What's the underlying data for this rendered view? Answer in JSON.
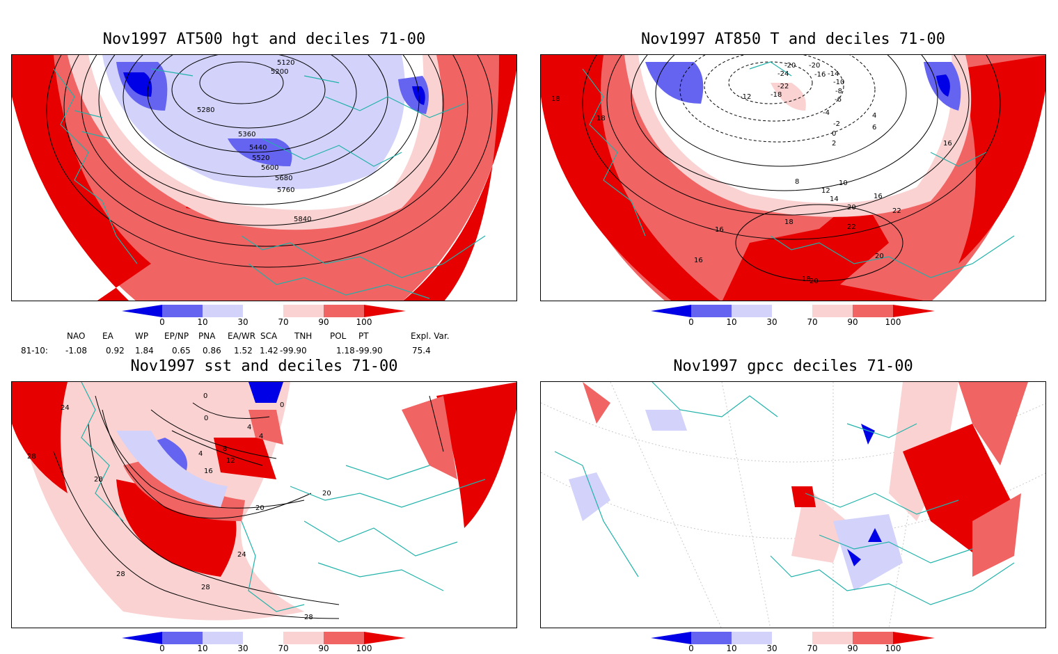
{
  "panels": [
    {
      "id": "p1",
      "title": "Nov1997 AT500 hgt and deciles 71-00",
      "contour_labels": [
        "5120",
        "5200",
        "5280",
        "5360",
        "5440",
        "5520",
        "5600",
        "5680",
        "5760",
        "5840"
      ]
    },
    {
      "id": "p2",
      "title": "Nov1997 AT850 T and deciles 71-00",
      "contour_labels": [
        "-20",
        "-20",
        "-24",
        "-22",
        "-18",
        "-16",
        "-14",
        "-12",
        "-10",
        "-8",
        "-6",
        "-4",
        "-2",
        "0",
        "2",
        "4",
        "6",
        "8",
        "10",
        "12",
        "14",
        "16",
        "16",
        "18",
        "18",
        "20",
        "20",
        "22",
        "22",
        "16",
        "18",
        "16",
        "20",
        "18"
      ]
    },
    {
      "id": "p3",
      "title": "Nov1997 sst and deciles 71-00",
      "contour_labels": [
        "0",
        "0",
        "0",
        "4",
        "4",
        "4",
        "8",
        "12",
        "16",
        "20",
        "20",
        "24",
        "24",
        "28",
        "28",
        "28",
        "28",
        "28"
      ]
    },
    {
      "id": "p4",
      "title": "Nov1997 gpcc deciles 71-00",
      "contour_labels": []
    }
  ],
  "colorbar": {
    "ticks": [
      "0",
      "10",
      "30",
      "70",
      "90",
      "100"
    ],
    "colors": [
      "#0000e6",
      "#6464f0",
      "#d2d2fa",
      "#ffffff",
      "#fad2d2",
      "#f06464",
      "#e60000"
    ]
  },
  "indices": {
    "headers": [
      "NAO",
      "EA",
      "WP",
      "EP/NP",
      "PNA",
      "EA/WR",
      "SCA",
      "TNH",
      "POL",
      "PT",
      "Expl. Var."
    ],
    "row_label": "81-10:",
    "values": [
      "-1.08",
      "0.92",
      "1.84",
      "0.65",
      "0.86",
      "1.52",
      "1.42",
      "-99.90",
      "1.18",
      "-99.90",
      "75.4"
    ]
  },
  "colors": {
    "coast": "#20b2aa",
    "contour": "#000000",
    "red": "#e60000",
    "lightred": "#f06464",
    "pink": "#fad2d2",
    "blue": "#0000e6",
    "lightblue": "#6464f0",
    "paleblue": "#d2d2fa"
  }
}
